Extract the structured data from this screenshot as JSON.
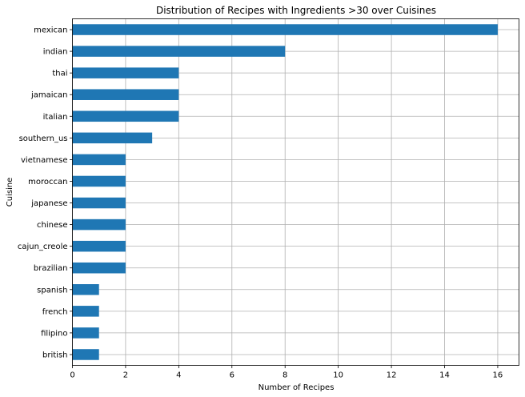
{
  "chart_data": {
    "type": "bar",
    "orientation": "horizontal",
    "title": "Distribution of Recipes with Ingredients >30 over Cuisines",
    "xlabel": "Number of Recipes",
    "ylabel": "Cuisine",
    "categories": [
      "mexican",
      "indian",
      "thai",
      "jamaican",
      "italian",
      "southern_us",
      "vietnamese",
      "moroccan",
      "japanese",
      "chinese",
      "cajun_creole",
      "brazilian",
      "spanish",
      "french",
      "filipino",
      "british"
    ],
    "values": [
      16,
      8,
      4,
      4,
      4,
      3,
      2,
      2,
      2,
      2,
      2,
      2,
      1,
      1,
      1,
      1
    ],
    "xlim": [
      0,
      16.8
    ],
    "xticks": [
      "0",
      "2",
      "4",
      "6",
      "8",
      "10",
      "12",
      "14",
      "16"
    ],
    "grid": true,
    "bar_color": "#1f77b4"
  }
}
